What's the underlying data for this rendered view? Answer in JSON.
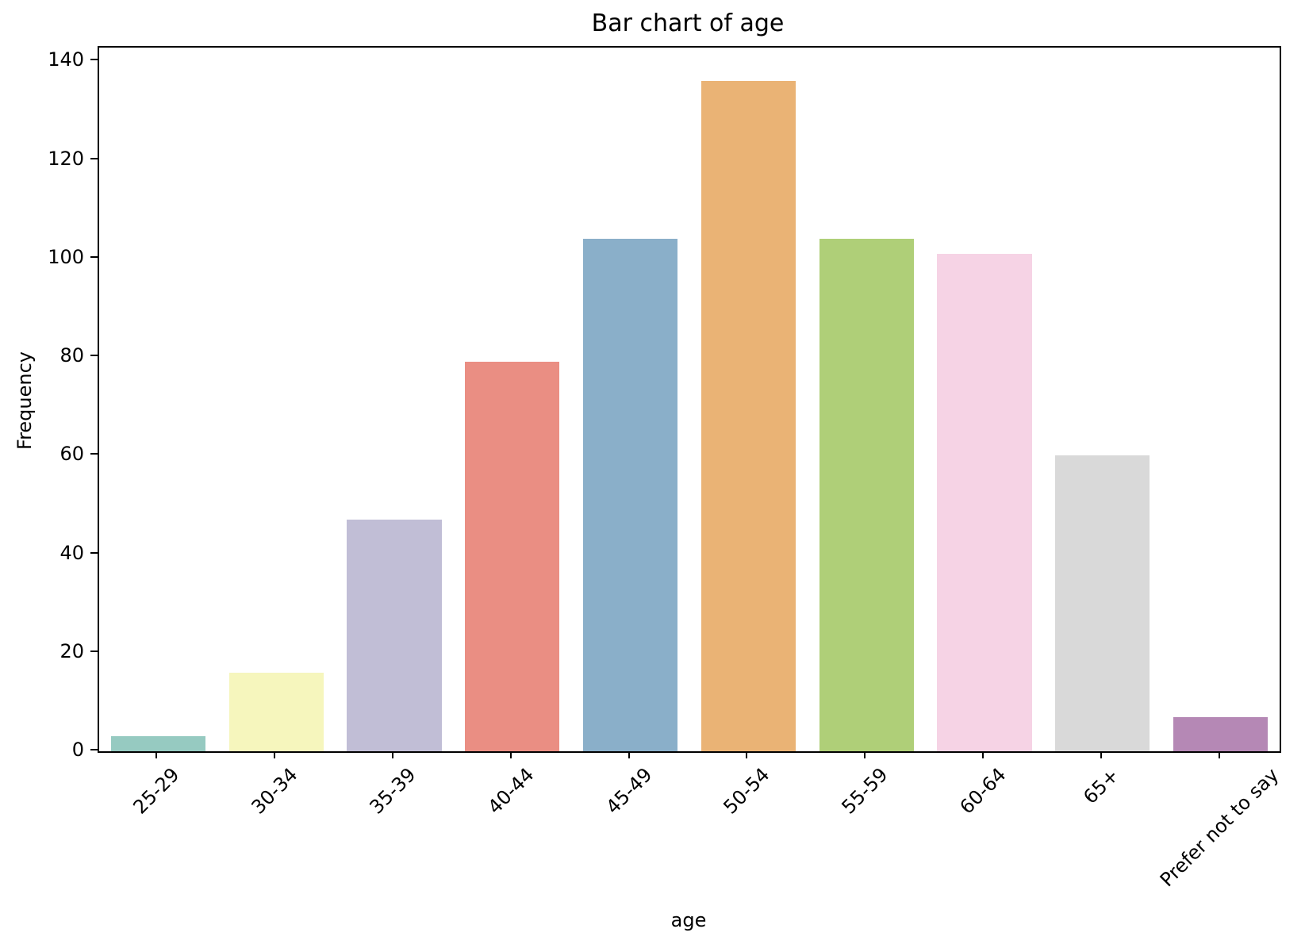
{
  "chart_data": {
    "type": "bar",
    "title": "Bar chart of age",
    "xlabel": "age",
    "ylabel": "Frequency",
    "categories": [
      "25-29",
      "30-34",
      "35-39",
      "40-44",
      "45-49",
      "50-54",
      "55-59",
      "60-64",
      "65+",
      "Prefer not to say"
    ],
    "values": [
      3,
      16,
      47,
      79,
      104,
      136,
      104,
      101,
      60,
      7
    ],
    "bar_colors": [
      "#96cac1",
      "#f6f6bd",
      "#c1bed6",
      "#ea8e83",
      "#8aafc9",
      "#eab375",
      "#afcf78",
      "#f6d3e5",
      "#d9d9d9",
      "#b588b5"
    ],
    "yticks": [
      0,
      20,
      40,
      60,
      80,
      100,
      120,
      140
    ],
    "ylim": [
      0,
      142.8
    ],
    "bar_width_fraction": 0.8,
    "grid": false,
    "legend": "none",
    "background_color": "#ffffff",
    "axis_color": "#000000"
  }
}
